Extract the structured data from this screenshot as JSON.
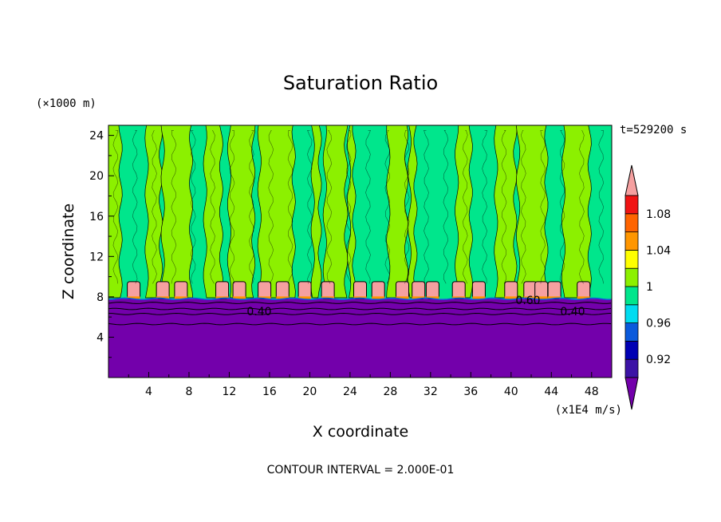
{
  "chart_data": {
    "type": "heatmap",
    "title": "Saturation Ratio",
    "xlabel": "X coordinate",
    "ylabel": "Z coordinate",
    "x_unit": "(x1E4 m/s)",
    "y_unit": "(×1000 m)",
    "time_label": "t=529200 s",
    "footer": "CONTOUR INTERVAL = 2.000E-01",
    "xlim": [
      0,
      50
    ],
    "ylim": [
      0,
      25
    ],
    "x_ticks": [
      "4",
      "8",
      "12",
      "16",
      "20",
      "24",
      "28",
      "32",
      "36",
      "40",
      "44",
      "48"
    ],
    "y_ticks": [
      "4",
      "8",
      "12",
      "16",
      "20",
      "24"
    ],
    "contour_labels": [
      "0.40",
      "0.40",
      "0.60"
    ],
    "colorbar": {
      "tick_labels": [
        "1.08",
        "1.04",
        "1",
        "0.96",
        "0.92"
      ],
      "levels": [
        {
          "lower": null,
          "upper": 0.9,
          "color": "#7300ab"
        },
        {
          "lower": 0.9,
          "upper": 0.92,
          "color": "#3c13a6"
        },
        {
          "lower": 0.92,
          "upper": 0.94,
          "color": "#0000b4"
        },
        {
          "lower": 0.94,
          "upper": 0.96,
          "color": "#0a5adc"
        },
        {
          "lower": 0.96,
          "upper": 0.98,
          "color": "#00dcf0"
        },
        {
          "lower": 0.98,
          "upper": 1.0,
          "color": "#00e68c"
        },
        {
          "lower": 1.0,
          "upper": 1.02,
          "color": "#8cf000"
        },
        {
          "lower": 1.02,
          "upper": 1.04,
          "color": "#ffff00"
        },
        {
          "lower": 1.04,
          "upper": 1.06,
          "color": "#ff9600"
        },
        {
          "lower": 1.06,
          "upper": 1.08,
          "color": "#ff6400"
        },
        {
          "lower": 1.08,
          "upper": 1.1,
          "color": "#f01414"
        },
        {
          "lower": 1.1,
          "upper": null,
          "color": "#f5a0a0"
        }
      ]
    },
    "regions": {
      "lower_layer": {
        "z_top": 7.8,
        "color": "#7300ab"
      },
      "upper_background_color": "#00e68c",
      "supersaturated_columns": [
        {
          "x0": 0.0,
          "x1": 1.2
        },
        {
          "x0": 3.8,
          "x1": 5.2
        },
        {
          "x0": 5.4,
          "x1": 8.2
        },
        {
          "x0": 9.6,
          "x1": 11.2
        },
        {
          "x0": 12.0,
          "x1": 14.4
        },
        {
          "x0": 15.0,
          "x1": 18.4
        },
        {
          "x0": 20.3,
          "x1": 21.0
        },
        {
          "x0": 21.5,
          "x1": 23.6
        },
        {
          "x0": 23.9,
          "x1": 24.4
        },
        {
          "x0": 27.8,
          "x1": 29.6
        },
        {
          "x0": 29.9,
          "x1": 30.5
        },
        {
          "x0": 34.6,
          "x1": 36.0
        },
        {
          "x0": 38.5,
          "x1": 40.4
        },
        {
          "x0": 40.7,
          "x1": 43.5
        },
        {
          "x0": 45.2,
          "x1": 47.8
        }
      ],
      "cloud_cells_x": [
        2.5,
        5.4,
        7.2,
        11.3,
        13.0,
        15.5,
        17.3,
        19.5,
        21.8,
        25.0,
        26.8,
        29.2,
        30.8,
        32.2,
        34.8,
        36.8,
        40.0,
        41.9,
        43.0,
        44.3,
        47.2
      ]
    }
  }
}
